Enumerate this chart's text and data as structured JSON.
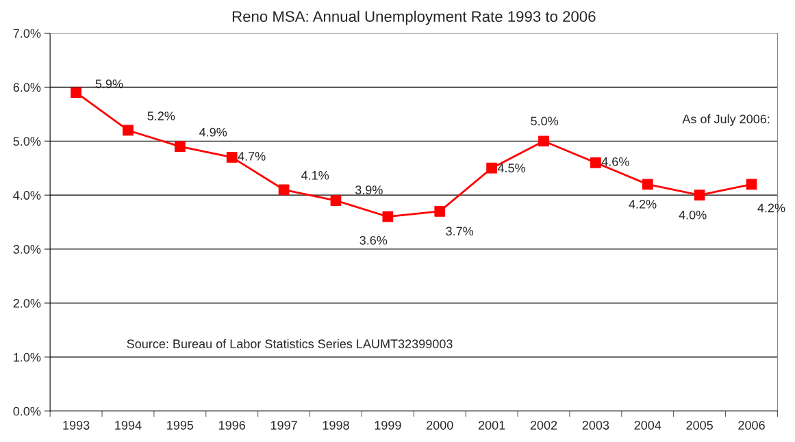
{
  "chart_data": {
    "type": "line",
    "title": "Reno MSA: Annual Unemployment Rate 1993 to 2006",
    "categories": [
      "1993",
      "1994",
      "1995",
      "1996",
      "1997",
      "1998",
      "1999",
      "2000",
      "2001",
      "2002",
      "2003",
      "2004",
      "2005",
      "2006"
    ],
    "series": [
      {
        "color": "#ff0000",
        "values": [
          5.9,
          5.2,
          4.9,
          4.7,
          4.1,
          3.9,
          3.6,
          3.7,
          4.5,
          5.0,
          4.6,
          4.2,
          4.0,
          4.2
        ],
        "value_labels": [
          "5.9%",
          "5.2%",
          "4.9%",
          "4.7%",
          "4.1%",
          "3.9%",
          "3.6%",
          "3.7%",
          "4.5%",
          "5.0%",
          "4.6%",
          "4.2%",
          "4.0%",
          "4.2%"
        ]
      }
    ],
    "ylim": [
      0,
      7
    ],
    "yticks": [
      {
        "value": 0,
        "label": "0.0%"
      },
      {
        "value": 1,
        "label": "1.0%"
      },
      {
        "value": 2,
        "label": "2.0%"
      },
      {
        "value": 3,
        "label": "3.0%"
      },
      {
        "value": 4,
        "label": "4.0%"
      },
      {
        "value": 5,
        "label": "5.0%"
      },
      {
        "value": 6,
        "label": "6.0%"
      },
      {
        "value": 7,
        "label": "7.0%"
      }
    ],
    "grid": "y",
    "marker": "square",
    "line_style": "solid",
    "legend": false,
    "annotations": [
      "As of July 2006:",
      "Source: Bureau of Labor Statistics Series LAUMT32399003"
    ]
  }
}
